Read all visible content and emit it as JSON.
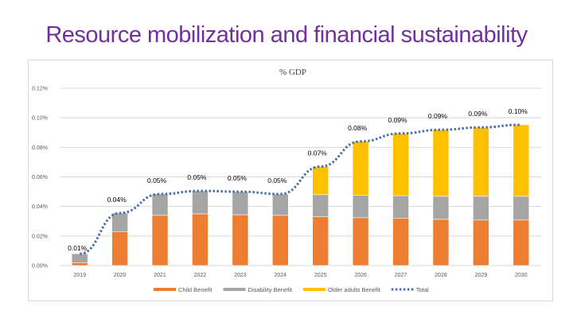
{
  "slide": {
    "title": "Resource mobilization and financial sustainability"
  },
  "chart_data": {
    "type": "bar",
    "stacked": true,
    "title": "% GDP",
    "xlabel": "",
    "ylabel": "",
    "ylim": [
      0,
      0.12
    ],
    "y_ticks": [
      "0.00%",
      "0.02%",
      "0.04%",
      "0.06%",
      "0.08%",
      "0.10%",
      "0.12%"
    ],
    "grid": true,
    "legend_position": "bottom",
    "categories": [
      "2019",
      "2020",
      "2021",
      "2022",
      "2023",
      "2024",
      "2025",
      "2026",
      "2027",
      "2028",
      "2029",
      "2030"
    ],
    "series": [
      {
        "name": "Child Benefit",
        "type": "bar",
        "color": "#ED7D31",
        "values": [
          0.002,
          0.023,
          0.034,
          0.035,
          0.0344,
          0.034,
          0.033,
          0.0324,
          0.0319,
          0.0313,
          0.0308,
          0.0308
        ]
      },
      {
        "name": "Disability Benefit",
        "type": "bar",
        "color": "#A5A5A5",
        "values": [
          0.006,
          0.0125,
          0.0144,
          0.0155,
          0.0156,
          0.0144,
          0.015,
          0.0151,
          0.0154,
          0.0156,
          0.0161,
          0.0161
        ]
      },
      {
        "name": "Older adults Benefit",
        "type": "bar",
        "color": "#FFC000",
        "values": [
          0,
          0,
          0,
          0,
          0,
          0,
          0.019,
          0.0365,
          0.0421,
          0.045,
          0.0466,
          0.0484
        ]
      },
      {
        "name": "Total",
        "type": "line",
        "style": "dotted",
        "color": "#4A6FA5",
        "values": [
          0.008,
          0.0355,
          0.0484,
          0.0505,
          0.05,
          0.0484,
          0.067,
          0.084,
          0.0894,
          0.0919,
          0.0935,
          0.0953
        ]
      }
    ],
    "data_labels": [
      "0.01%",
      "0.04%",
      "0.05%",
      "0.05%",
      "0.05%",
      "0.05%",
      "0.07%",
      "0.08%",
      "0.09%",
      "0.09%",
      "0.09%",
      "0.10%"
    ]
  }
}
